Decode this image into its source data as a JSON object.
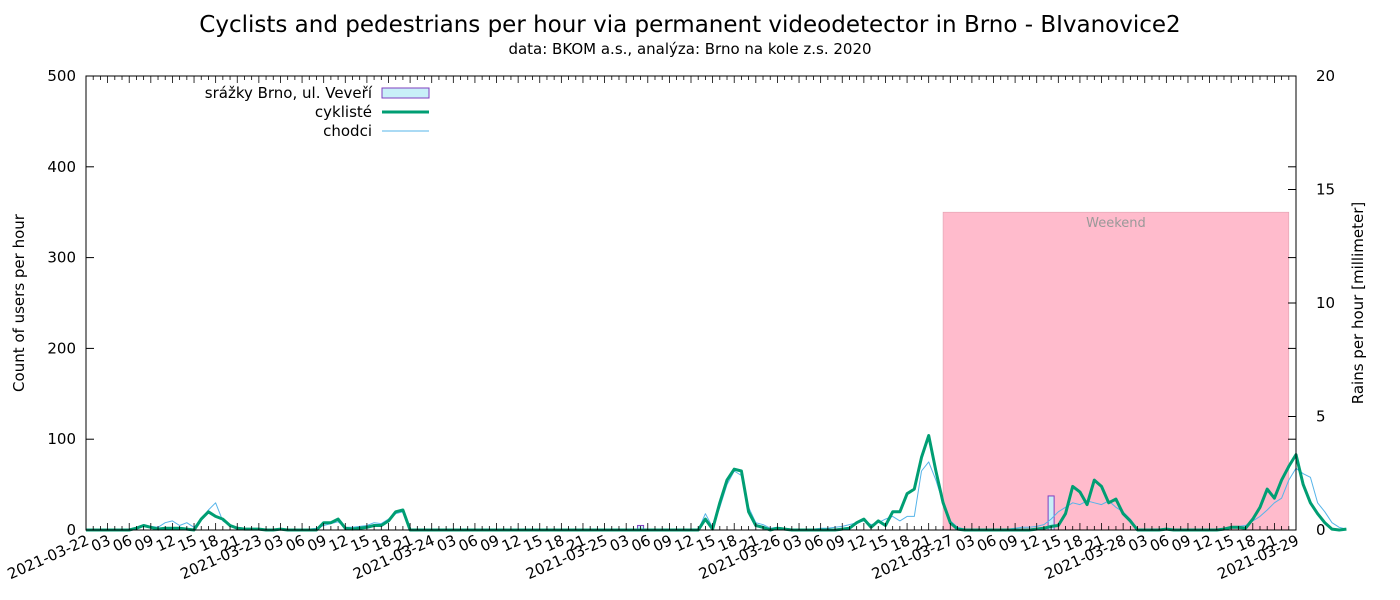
{
  "chart_data": {
    "type": "line",
    "title": "Cyclists and pedestrians per hour via permanent videodetector in Brno - BIvanovice2",
    "subtitle": "data: BKOM a.s., analýza: Brno na kole z.s. 2020",
    "ylabel": "Count of users per hour",
    "y2label": "Rains per hour [millimeter]",
    "ylim": [
      0,
      500
    ],
    "y2lim": [
      0,
      20
    ],
    "yticks": [
      "0",
      "100",
      "200",
      "300",
      "400",
      "500"
    ],
    "y2ticks": [
      "0",
      "5",
      "10",
      "15",
      "20"
    ],
    "xlim_hours": [
      0,
      168
    ],
    "x_start": "2021-03-22 00:00",
    "x_labels": [
      "2021-03-22",
      "03",
      "06",
      "09",
      "12",
      "15",
      "18",
      "21",
      "2021-03-23",
      "03",
      "06",
      "09",
      "12",
      "15",
      "18",
      "21",
      "2021-03-24",
      "03",
      "06",
      "09",
      "12",
      "15",
      "18",
      "21",
      "2021-03-25",
      "03",
      "06",
      "09",
      "12",
      "15",
      "18",
      "21",
      "2021-03-26",
      "03",
      "06",
      "09",
      "12",
      "15",
      "18",
      "21",
      "2021-03-27",
      "03",
      "06",
      "09",
      "12",
      "15",
      "18",
      "21",
      "2021-03-28",
      "03",
      "06",
      "09",
      "12",
      "15",
      "18",
      "21",
      "2021-03-29"
    ],
    "grid": false,
    "legend_position": "top-left",
    "weekend": {
      "label": "Weekend",
      "from_hour": 119,
      "to_hour": 167,
      "y_top": 350,
      "color": "#ffbbcc"
    },
    "series": [
      {
        "name": "srážky Brno, ul. Veveří",
        "kind": "bar",
        "axis": "y2",
        "color": "#c8f0f8",
        "stroke": "#7f3fbf",
        "x": [
          77,
          134
        ],
        "values": [
          0.2,
          1.5
        ]
      },
      {
        "name": "cyklisté",
        "kind": "line",
        "axis": "y",
        "color": "#009e73",
        "width": 3,
        "values": [
          0,
          0,
          0,
          0,
          0,
          0,
          0,
          2,
          5,
          3,
          1,
          2,
          2,
          2,
          1,
          0,
          12,
          20,
          15,
          12,
          5,
          2,
          1,
          1,
          1,
          0,
          0,
          1,
          0,
          0,
          0,
          0,
          0,
          8,
          8,
          12,
          2,
          1,
          2,
          3,
          5,
          5,
          10,
          20,
          22,
          0,
          0,
          0,
          0,
          0,
          0,
          0,
          0,
          0,
          0,
          0,
          0,
          0,
          0,
          0,
          0,
          0,
          0,
          0,
          0,
          0,
          0,
          0,
          0,
          0,
          0,
          0,
          0,
          0,
          0,
          0,
          0,
          0,
          0,
          0,
          0,
          0,
          0,
          0,
          0,
          0,
          12,
          1,
          30,
          55,
          67,
          65,
          20,
          5,
          3,
          0,
          2,
          1,
          0,
          0,
          0,
          0,
          0,
          0,
          0,
          1,
          2,
          8,
          12,
          3,
          10,
          5,
          20,
          20,
          40,
          45,
          80,
          104,
          65,
          30,
          8,
          1,
          0,
          0,
          0,
          0,
          0,
          0,
          0,
          0,
          0,
          0,
          1,
          2,
          4,
          5,
          18,
          48,
          42,
          28,
          55,
          48,
          30,
          34,
          18,
          10,
          0,
          0,
          0,
          0,
          1,
          0,
          0,
          0,
          0,
          0,
          0,
          0,
          1,
          3,
          3,
          2,
          12,
          25,
          45,
          35,
          55,
          70,
          83,
          50,
          30,
          18,
          8,
          1,
          0,
          1
        ]
      },
      {
        "name": "chodci",
        "kind": "line",
        "axis": "y",
        "color": "#56b4e9",
        "width": 1,
        "values": [
          0,
          1,
          1,
          0,
          0,
          1,
          1,
          3,
          5,
          4,
          3,
          8,
          10,
          5,
          8,
          3,
          12,
          22,
          30,
          10,
          5,
          3,
          2,
          1,
          1,
          0,
          1,
          1,
          1,
          1,
          0,
          1,
          2,
          5,
          7,
          9,
          3,
          3,
          4,
          5,
          8,
          7,
          12,
          18,
          20,
          0,
          0,
          0,
          0,
          0,
          0,
          0,
          0,
          0,
          0,
          0,
          0,
          0,
          0,
          0,
          0,
          0,
          0,
          0,
          0,
          0,
          0,
          0,
          0,
          0,
          0,
          0,
          0,
          0,
          0,
          0,
          0,
          0,
          0,
          0,
          0,
          0,
          0,
          0,
          0,
          0,
          18,
          3,
          25,
          50,
          65,
          60,
          25,
          8,
          6,
          2,
          3,
          2,
          1,
          1,
          1,
          1,
          2,
          2,
          3,
          4,
          6,
          8,
          10,
          6,
          8,
          12,
          15,
          10,
          15,
          15,
          65,
          75,
          55,
          30,
          10,
          3,
          1,
          1,
          1,
          0,
          0,
          1,
          1,
          2,
          3,
          3,
          4,
          6,
          12,
          20,
          25,
          30,
          28,
          32,
          30,
          28,
          32,
          25,
          20,
          12,
          1,
          1,
          0,
          0,
          0,
          0,
          0,
          0,
          0,
          0,
          0,
          1,
          2,
          3,
          4,
          5,
          10,
          15,
          22,
          30,
          35,
          55,
          68,
          62,
          58,
          30,
          20,
          8,
          3,
          1
        ]
      }
    ]
  }
}
